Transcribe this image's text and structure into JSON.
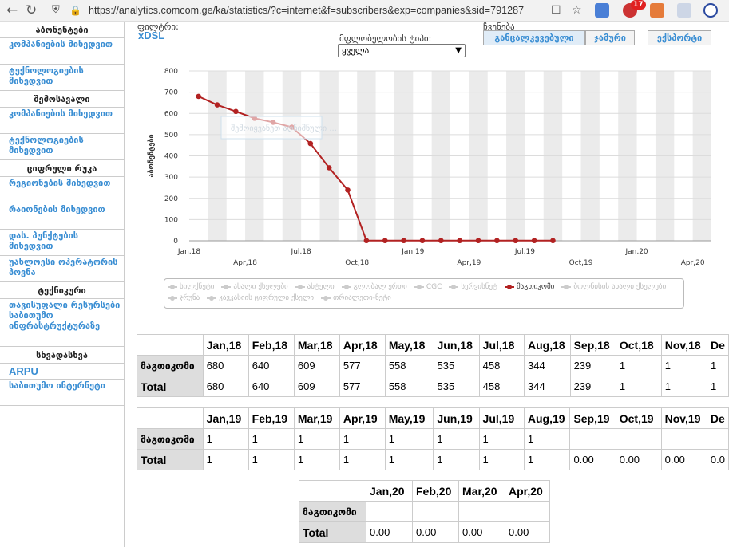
{
  "browser": {
    "url": "https://analytics.comcom.ge/ka/statistics/?c=internet&f=subscribers&exp=companies&sid=791287",
    "notification_count": "17"
  },
  "sidebar": {
    "sections": [
      {
        "header": "აბონენტები",
        "items": [
          "კომპანიების მიხედვით",
          "ტექნოლოგიების მიხედვით"
        ]
      },
      {
        "header": "შემოსავალი",
        "items": [
          "კომპანიების მიხედვით",
          "ტექნოლოგიების მიხედვით"
        ]
      },
      {
        "header": "ციფრული რუკა",
        "items": [
          "რეგიონების მიხედვით",
          "რაიონების მიხედვით",
          "დას. პუნქტების მიხედვით",
          "უახლოესი ოპერატორის პოვნა"
        ]
      },
      {
        "header": "ტექნიკური",
        "items": [
          "თავისუფალი რესურსები საბითუმო ინფრასტრუქტურაზე"
        ]
      },
      {
        "header": "სხვადასხვა",
        "items": [
          "ARPU",
          "საბითუმო ინტერნეტი"
        ]
      }
    ]
  },
  "controls": {
    "filter_label": "ფილტრი:",
    "filter_value": "xDSL",
    "type_label": "მფლობელობის ტიპი:",
    "type_value": "ყველა",
    "show_label": "ჩვენება",
    "btn_separate": "განცალკევებული",
    "btn_total": "ჯამური",
    "btn_export": "ექსპორტი"
  },
  "chart_data": {
    "type": "line",
    "ylabel": "აბონენტები",
    "ylim": [
      0,
      800
    ],
    "yticks": [
      0,
      100,
      200,
      300,
      400,
      500,
      600,
      700,
      800
    ],
    "xticks": [
      "Jan,18",
      "Apr,18",
      "Jul,18",
      "Oct,18",
      "Jan,19",
      "Apr,19",
      "Jul,19",
      "Oct,19",
      "Jan,20",
      "Apr,20"
    ],
    "series": [
      {
        "name": "მაგთიკომი",
        "color": "#b22222",
        "x": [
          "Jan,18",
          "Feb,18",
          "Mar,18",
          "Apr,18",
          "May,18",
          "Jun,18",
          "Jul,18",
          "Aug,18",
          "Sep,18",
          "Oct,18",
          "Nov,18",
          "Dec,18",
          "Jan,19",
          "Feb,19",
          "Mar,19",
          "Apr,19",
          "May,19",
          "Jun,19",
          "Jul,19",
          "Aug,19"
        ],
        "values": [
          680,
          640,
          609,
          577,
          558,
          535,
          458,
          344,
          239,
          1,
          1,
          1,
          1,
          1,
          1,
          1,
          1,
          1,
          1,
          1
        ]
      }
    ],
    "legend": [
      "სილქნეტი",
      "ახალი ქსელები",
      "ახტელი",
      "გლობალ ერთი",
      "CGC",
      "სერვისნეტ",
      "მაგთიკომი",
      "ბოლნისის ახალი ქსელები",
      "ჯრუნა",
      "კავკასიის ციფრული ქსელი",
      "თრიალეთი-ნეტი"
    ],
    "legend_active": "მაგთიკომი",
    "tooltip": "შემოიყვანეთ აღნიშნული ..."
  },
  "tables": [
    {
      "months": [
        "Jan,18",
        "Feb,18",
        "Mar,18",
        "Apr,18",
        "May,18",
        "Jun,18",
        "Jul,18",
        "Aug,18",
        "Sep,18",
        "Oct,18",
        "Nov,18",
        "De"
      ],
      "rows": [
        {
          "label": "მაგთიკომი",
          "cells": [
            "680",
            "640",
            "609",
            "577",
            "558",
            "535",
            "458",
            "344",
            "239",
            "1",
            "1",
            "1"
          ]
        },
        {
          "label": "Total",
          "cells": [
            "680",
            "640",
            "609",
            "577",
            "558",
            "535",
            "458",
            "344",
            "239",
            "1",
            "1",
            "1"
          ]
        }
      ]
    },
    {
      "months": [
        "Jan,19",
        "Feb,19",
        "Mar,19",
        "Apr,19",
        "May,19",
        "Jun,19",
        "Jul,19",
        "Aug,19",
        "Sep,19",
        "Oct,19",
        "Nov,19",
        "De"
      ],
      "rows": [
        {
          "label": "მაგთიკომი",
          "cells": [
            "1",
            "1",
            "1",
            "1",
            "1",
            "1",
            "1",
            "1",
            "",
            "",
            "",
            ""
          ]
        },
        {
          "label": "Total",
          "cells": [
            "1",
            "1",
            "1",
            "1",
            "1",
            "1",
            "1",
            "1",
            "0.00",
            "0.00",
            "0.00",
            "0.0"
          ]
        }
      ]
    },
    {
      "months": [
        "Jan,20",
        "Feb,20",
        "Mar,20",
        "Apr,20"
      ],
      "rows": [
        {
          "label": "მაგთიკომი",
          "cells": [
            "",
            "",
            "",
            ""
          ]
        },
        {
          "label": "Total",
          "cells": [
            "0.00",
            "0.00",
            "0.00",
            "0.00"
          ]
        }
      ]
    }
  ]
}
